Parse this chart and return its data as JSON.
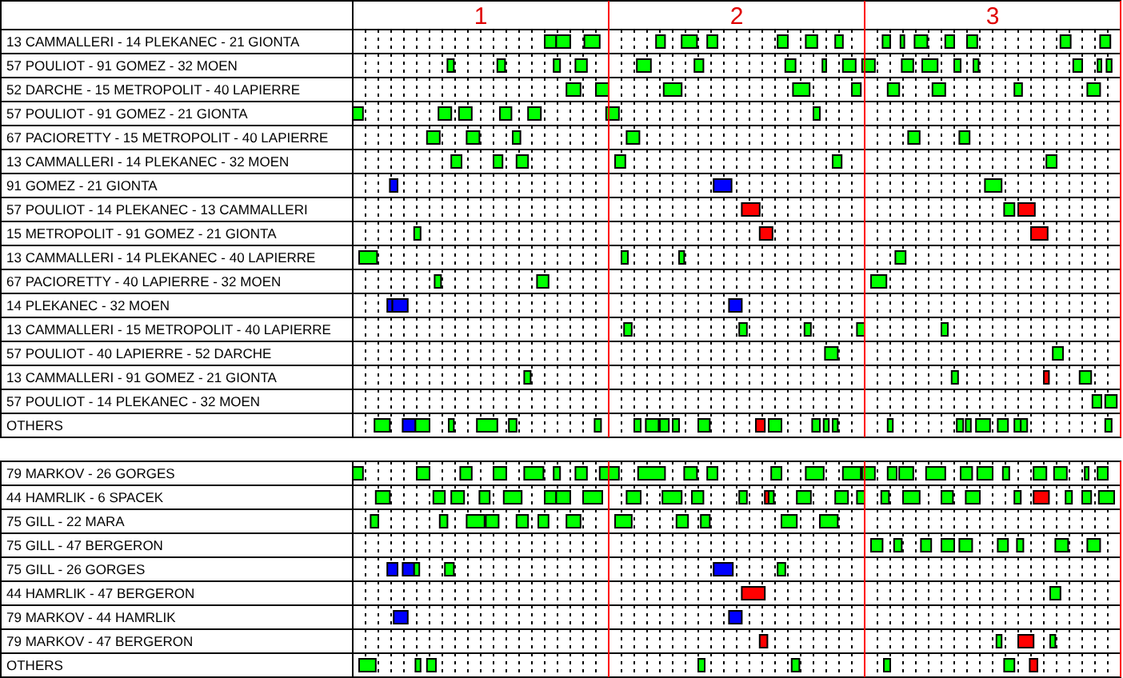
{
  "chart_data": {
    "type": "bar",
    "orientation": "horizontal",
    "grid": "x",
    "xlim": [
      0.5,
      3.5
    ],
    "xticks": [
      {
        "value": 0.55,
        "label": null
      },
      {
        "value": 0.6,
        "label": null
      },
      {
        "value": 0.65,
        "label": null
      },
      {
        "value": 0.7,
        "label": null
      },
      {
        "value": 0.75,
        "label": null
      },
      {
        "value": 0.8,
        "label": null
      },
      {
        "value": 0.85,
        "label": null
      },
      {
        "value": 0.9,
        "label": null
      },
      {
        "value": 0.95,
        "label": null
      },
      1,
      {
        "value": 1.05,
        "label": null
      },
      {
        "value": 1.1,
        "label": null
      },
      {
        "value": 1.15,
        "label": null
      },
      {
        "value": 1.2,
        "label": null
      },
      {
        "value": 1.25,
        "label": null
      },
      {
        "value": 1.3,
        "label": null
      },
      {
        "value": 1.35,
        "label": null
      },
      {
        "value": 1.4,
        "label": null
      },
      {
        "value": 1.45,
        "label": null
      },
      {
        "value": 1.55,
        "label": null
      },
      {
        "value": 1.6,
        "label": null
      },
      {
        "value": 1.65,
        "label": null
      },
      {
        "value": 1.7,
        "label": null
      },
      {
        "value": 1.75,
        "label": null
      },
      {
        "value": 1.8,
        "label": null
      },
      {
        "value": 1.85,
        "label": null
      },
      {
        "value": 1.9,
        "label": null
      },
      {
        "value": 1.95,
        "label": null
      },
      2,
      {
        "value": 2.05,
        "label": null
      },
      {
        "value": 2.1,
        "label": null
      },
      {
        "value": 2.15,
        "label": null
      },
      {
        "value": 2.2,
        "label": null
      },
      {
        "value": 2.25,
        "label": null
      },
      {
        "value": 2.3,
        "label": null
      },
      {
        "value": 2.35,
        "label": null
      },
      {
        "value": 2.4,
        "label": null
      },
      {
        "value": 2.45,
        "label": null
      },
      {
        "value": 2.55,
        "label": null
      },
      {
        "value": 2.6,
        "label": null
      },
      {
        "value": 2.65,
        "label": null
      },
      {
        "value": 2.7,
        "label": null
      },
      {
        "value": 2.75,
        "label": null
      },
      {
        "value": 2.8,
        "label": null
      },
      {
        "value": 2.85,
        "label": null
      },
      {
        "value": 2.9,
        "label": null
      },
      {
        "value": 2.95,
        "label": null
      },
      3,
      {
        "value": 3.05,
        "label": null
      },
      {
        "value": 3.1,
        "label": null
      },
      {
        "value": 3.15,
        "label": null
      },
      {
        "value": 3.2,
        "label": null
      },
      {
        "value": 3.25,
        "label": null
      },
      {
        "value": 3.3,
        "label": null
      },
      {
        "value": 3.35,
        "label": null
      },
      {
        "value": 3.4,
        "label": null
      },
      {
        "value": 3.45,
        "label": null
      }
    ],
    "ref_lines": [
      {
        "axis": "x",
        "value": 1.5,
        "color": "#ff0000"
      },
      {
        "axis": "x",
        "value": 2.5,
        "color": "#ff0000"
      },
      {
        "axis": "x",
        "value": 3.5,
        "color": "#ff0000"
      }
    ],
    "categories": [
      "13 CAMMALLERI - 14 PLEKANEC - 21 GIONTA",
      "57 POULIOT - 91 GOMEZ - 32 MOEN",
      "52 DARCHE - 15 METROPOLIT - 40 LAPIERRE",
      "57 POULIOT - 91 GOMEZ - 21 GIONTA",
      "67 PACIORETTY - 15 METROPOLIT - 40 LAPIERRE",
      "13 CAMMALLERI - 14 PLEKANEC - 32 MOEN",
      "91 GOMEZ - 21 GIONTA",
      "57 POULIOT - 14 PLEKANEC - 13 CAMMALLERI",
      "15 METROPOLIT - 91 GOMEZ - 21 GIONTA",
      "13 CAMMALLERI - 14 PLEKANEC - 40 LAPIERRE",
      "67 PACIORETTY - 40 LAPIERRE - 32 MOEN",
      "14 PLEKANEC - 32 MOEN",
      "13 CAMMALLERI - 15 METROPOLIT - 40 LAPIERRE",
      "57 POULIOT - 40 LAPIERRE - 52 DARCHE",
      "13 CAMMALLERI - 91 GOMEZ - 21 GIONTA",
      "57 POULIOT - 14 PLEKANEC - 32 MOEN",
      "OTHERS",
      null,
      "79 MARKOV - 26 GORGES",
      "44 HAMRLIK - 6 SPACEK",
      "75 GILL - 22 MARA",
      "75 GILL - 47 BERGERON",
      "75 GILL - 26 GORGES",
      "44 HAMRLIK - 47 BERGERON",
      "79 MARKOV - 44 HAMRLIK",
      "79 MARKOV - 47 BERGERON",
      "OTHERS"
    ],
    "series": [
      {
        "base": [
          1.25,
          0.87,
          1.335,
          0.5,
          0.79,
          0.885,
          0.645,
          2.02,
          0.74,
          0.525,
          0.82,
          0.635,
          1.56,
          2.345,
          1.17,
          3.39,
          0.585,
          null,
          0.5,
          0.59,
          0.57,
          2.525,
          0.635,
          2.02,
          0.66,
          2.09,
          0.525
        ],
        "values": [
          0.045,
          0.025,
          0.055,
          0.04,
          0.05,
          0.04,
          0.03,
          0.07,
          0.025,
          0.07,
          0.025,
          0.02,
          0.03,
          0.05,
          0.025,
          0.035,
          0.06,
          null,
          0.04,
          0.055,
          0.03,
          0.045,
          0.04,
          0.09,
          0.055,
          0.03,
          0.065
        ],
        "colors": [
          "#00ff00",
          "#00ff00",
          "#00ff00",
          "#00ff00",
          "#00ff00",
          "#00ff00",
          "#0000ff",
          "#ff0000",
          "#00ff00",
          "#00ff00",
          "#00ff00",
          "#0000ff",
          "#00ff00",
          "#00ff00",
          "#00ff00",
          "#00ff00",
          "#00ff00",
          null,
          "#00ff00",
          "#00ff00",
          "#00ff00",
          "#00ff00",
          "#0000ff",
          "#ff0000",
          "#0000ff",
          "#ff0000",
          "#00ff00"
        ]
      },
      {
        "base": [
          1.295,
          1.065,
          1.45,
          0.835,
          0.945,
          1.05,
          1.91,
          3.045,
          2.09,
          1.55,
          1.22,
          0.655,
          2.01,
          3.235,
          2.84,
          3.44,
          0.695,
          null,
          0.75,
          0.815,
          0.84,
          2.615,
          0.695,
          3.225,
          1.97,
          3.015,
          0.745
        ],
        "values": [
          0.055,
          0.03,
          0.05,
          0.05,
          0.05,
          0.035,
          0.07,
          0.04,
          0.05,
          0.025,
          0.045,
          0.06,
          0.03,
          0.04,
          0.025,
          0.045,
          0.05,
          null,
          0.05,
          0.045,
          0.03,
          0.03,
          0.045,
          0.04,
          0.05,
          0.02,
          0.02
        ],
        "colors": [
          "#00ff00",
          "#00ff00",
          "#00ff00",
          "#00ff00",
          "#00ff00",
          "#00ff00",
          "#0000ff",
          "#00ff00",
          "#ff0000",
          "#00ff00",
          "#00ff00",
          "#0000ff",
          "#00ff00",
          "#00ff00",
          "#00ff00",
          "#00ff00",
          "#0000ff",
          null,
          "#00ff00",
          "#00ff00",
          "#00ff00",
          "#00ff00",
          "#0000ff",
          "#00ff00",
          "#0000ff",
          "#00ff00",
          "#00ff00"
        ]
      },
      {
        "base": [
          1.405,
          1.285,
          1.715,
          0.915,
          1.125,
          1.14,
          2.97,
          3.1,
          3.15,
          1.775,
          2.525,
          1.97,
          2.265,
          null,
          3.2,
          null,
          0.745,
          null,
          0.92,
          0.885,
          0.945,
          2.72,
          0.74,
          null,
          null,
          3.1,
          0.79
        ],
        "values": [
          0.06,
          0.025,
          0.07,
          0.05,
          0.03,
          0.045,
          0.065,
          0.065,
          0.065,
          0.02,
          0.06,
          0.05,
          0.025,
          null,
          0.02,
          null,
          0.055,
          null,
          0.045,
          0.05,
          0.07,
          0.04,
          0.02,
          null,
          null,
          0.06,
          0.035
        ],
        "colors": [
          "#00ff00",
          "#00ff00",
          "#00ff00",
          "#00ff00",
          "#00ff00",
          "#00ff00",
          "#00ff00",
          "#ff0000",
          "#ff0000",
          "#00ff00",
          "#00ff00",
          "#0000ff",
          "#00ff00",
          null,
          "#ff0000",
          null,
          "#00ff00",
          null,
          "#00ff00",
          "#00ff00",
          "#00ff00",
          "#00ff00",
          "#00ff00",
          null,
          null,
          "#ff0000",
          "#00ff00"
        ]
      },
      {
        "color": "#00ff00",
        "base": [
          1.685,
          1.37,
          2.22,
          1.075,
          1.57,
          1.525,
          null,
          null,
          null,
          2.62,
          null,
          null,
          2.47,
          null,
          3.34,
          null,
          0.875,
          null,
          1.05,
          0.995,
          1.02,
          2.8,
          0.86,
          null,
          null,
          3.225,
          1.85
        ],
        "values": [
          0.035,
          0.045,
          0.065,
          0.045,
          0.05,
          0.04,
          null,
          null,
          null,
          0.04,
          null,
          null,
          0.03,
          null,
          0.045,
          null,
          0.02,
          null,
          0.05,
          0.04,
          0.05,
          0.05,
          0.035,
          null,
          null,
          0.02,
          0.025
        ]
      },
      {
        "base": [
          1.785,
          1.61,
          2.45,
          1.185,
          2.67,
          2.375,
          null,
          null,
          null,
          null,
          null,
          null,
          2.8,
          null,
          null,
          null,
          0.985,
          null,
          1.17,
          1.09,
          1.14,
          2.87,
          1.91,
          null,
          null,
          null,
          2.215
        ],
        "values": [
          0.06,
          0.055,
          0.035,
          0.05,
          0.045,
          0.035,
          null,
          null,
          null,
          null,
          null,
          null,
          0.025,
          null,
          null,
          null,
          0.08,
          null,
          0.075,
          0.07,
          0.045,
          0.05,
          0.075,
          null,
          null,
          null,
          0.03
        ],
        "colors": [
          "#00ff00",
          "#00ff00",
          "#00ff00",
          "#00ff00",
          "#00ff00",
          "#00ff00",
          null,
          null,
          null,
          null,
          null,
          null,
          "#00ff00",
          null,
          null,
          null,
          "#00ff00",
          null,
          "#00ff00",
          "#00ff00",
          "#00ff00",
          "#00ff00",
          "#0000ff",
          null,
          null,
          null,
          "#00ff00"
        ]
      },
      {
        "color": "#00ff00",
        "base": [
          1.885,
          1.835,
          2.59,
          1.49,
          2.87,
          3.21,
          null,
          null,
          null,
          null,
          null,
          null,
          null,
          null,
          null,
          null,
          1.11,
          null,
          1.285,
          1.25,
          1.225,
          3.02,
          2.16,
          null,
          null,
          null,
          2.575
        ],
        "values": [
          0.04,
          0.035,
          0.045,
          0.05,
          0.04,
          0.04,
          null,
          null,
          null,
          null,
          null,
          null,
          null,
          null,
          null,
          null,
          0.03,
          null,
          0.025,
          0.045,
          0.04,
          0.04,
          0.03,
          null,
          null,
          null,
          0.025
        ]
      },
      {
        "color": "#00ff00",
        "base": [
          2.16,
          2.19,
          2.765,
          2.3,
          null,
          null,
          null,
          null,
          null,
          null,
          null,
          null,
          null,
          null,
          null,
          null,
          1.445,
          null,
          1.37,
          1.295,
          1.335,
          3.095,
          null,
          null,
          null,
          null,
          3.045
        ],
        "values": [
          0.04,
          0.04,
          0.05,
          0.025,
          null,
          null,
          null,
          null,
          null,
          null,
          null,
          null,
          null,
          null,
          null,
          null,
          0.025,
          null,
          0.045,
          0.055,
          0.055,
          0.025,
          null,
          null,
          null,
          null,
          0.04
        ]
      },
      {
        "base": [
          2.27,
          2.335,
          3.085,
          null,
          null,
          null,
          null,
          null,
          null,
          null,
          null,
          null,
          null,
          null,
          null,
          null,
          1.6,
          null,
          1.465,
          1.4,
          1.525,
          3.245,
          null,
          null,
          null,
          null,
          3.145
        ],
        "values": [
          0.045,
          0.015,
          0.03,
          null,
          null,
          null,
          null,
          null,
          null,
          null,
          null,
          null,
          null,
          null,
          null,
          null,
          0.025,
          null,
          0.075,
          0.075,
          0.065,
          0.05,
          null,
          null,
          null,
          null,
          0.03
        ],
        "colors": [
          "#00ff00",
          "#00ff00",
          "#00ff00",
          null,
          null,
          null,
          null,
          null,
          null,
          null,
          null,
          null,
          null,
          null,
          null,
          null,
          "#00ff00",
          null,
          "#00ff00",
          "#00ff00",
          "#00ff00",
          "#00ff00",
          null,
          null,
          null,
          null,
          "#ff0000"
        ]
      },
      {
        "color": "#00ff00",
        "base": [
          2.385,
          2.415,
          3.37,
          null,
          null,
          null,
          null,
          null,
          null,
          null,
          null,
          null,
          null,
          null,
          null,
          null,
          1.645,
          null,
          1.615,
          1.57,
          1.765,
          3.37,
          null,
          null,
          null,
          null,
          null
        ],
        "values": [
          0.03,
          0.05,
          0.05,
          null,
          null,
          null,
          null,
          null,
          null,
          null,
          null,
          null,
          null,
          null,
          null,
          null,
          0.05,
          null,
          0.105,
          0.055,
          0.045,
          0.05,
          null,
          null,
          null,
          null,
          null
        ]
      },
      {
        "color": "#00ff00",
        "base": [
          2.57,
          2.49,
          null,
          null,
          null,
          null,
          null,
          null,
          null,
          null,
          null,
          null,
          null,
          null,
          null,
          null,
          1.7,
          null,
          1.795,
          1.71,
          1.86,
          null,
          null,
          null,
          null,
          null,
          null
        ],
        "values": [
          0.03,
          0.05,
          null,
          null,
          null,
          null,
          null,
          null,
          null,
          null,
          null,
          null,
          null,
          null,
          null,
          null,
          0.035,
          null,
          0.05,
          0.075,
          0.035,
          null,
          null,
          null,
          null,
          null,
          null
        ]
      },
      {
        "color": "#00ff00",
        "base": [
          2.64,
          2.645,
          null,
          null,
          null,
          null,
          null,
          null,
          null,
          null,
          null,
          null,
          null,
          null,
          null,
          null,
          1.75,
          null,
          1.885,
          1.825,
          2.175,
          null,
          null,
          null,
          null,
          null,
          null
        ],
        "values": [
          0.015,
          0.045,
          null,
          null,
          null,
          null,
          null,
          null,
          null,
          null,
          null,
          null,
          null,
          null,
          null,
          null,
          0.025,
          null,
          0.04,
          0.045,
          0.06,
          null,
          null,
          null,
          null,
          null,
          null
        ]
      },
      {
        "color": "#00ff00",
        "base": [
          2.695,
          2.725,
          null,
          null,
          null,
          null,
          null,
          null,
          null,
          null,
          null,
          null,
          null,
          null,
          null,
          null,
          1.85,
          null,
          2.135,
          2.01,
          2.325,
          null,
          null,
          null,
          null,
          null,
          null
        ],
        "values": [
          0.05,
          0.06,
          null,
          null,
          null,
          null,
          null,
          null,
          null,
          null,
          null,
          null,
          null,
          null,
          null,
          null,
          0.045,
          null,
          0.04,
          0.03,
          0.07,
          null,
          null,
          null,
          null,
          null,
          null
        ]
      },
      {
        "base": [
          2.815,
          2.85,
          null,
          null,
          null,
          null,
          null,
          null,
          null,
          null,
          null,
          null,
          null,
          null,
          null,
          null,
          2.075,
          null,
          2.27,
          2.11,
          null,
          null,
          null,
          null,
          null,
          null,
          null
        ],
        "values": [
          0.035,
          0.025,
          null,
          null,
          null,
          null,
          null,
          null,
          null,
          null,
          null,
          null,
          null,
          null,
          null,
          null,
          0.035,
          null,
          0.07,
          0.015,
          null,
          null,
          null,
          null,
          null,
          null,
          null
        ],
        "colors": [
          "#00ff00",
          "#00ff00",
          null,
          null,
          null,
          null,
          null,
          null,
          null,
          null,
          null,
          null,
          null,
          null,
          null,
          null,
          "#ff0000",
          null,
          "#00ff00",
          "#ff0000",
          null,
          null,
          null,
          null,
          null,
          null,
          null
        ]
      },
      {
        "color": "#00ff00",
        "base": [
          2.9,
          2.925,
          null,
          null,
          null,
          null,
          null,
          null,
          null,
          null,
          null,
          null,
          null,
          null,
          null,
          null,
          2.125,
          null,
          2.415,
          2.125,
          null,
          null,
          null,
          null,
          null,
          null,
          null
        ],
        "values": [
          0.04,
          0.02,
          null,
          null,
          null,
          null,
          null,
          null,
          null,
          null,
          null,
          null,
          null,
          null,
          null,
          null,
          0.05,
          null,
          0.07,
          0.02,
          null,
          null,
          null,
          null,
          null,
          null,
          null
        ]
      },
      {
        "color": "#00ff00",
        "base": [
          3.265,
          3.315,
          null,
          null,
          null,
          null,
          null,
          null,
          null,
          null,
          null,
          null,
          null,
          null,
          null,
          null,
          2.295,
          null,
          2.49,
          2.235,
          null,
          null,
          null,
          null,
          null,
          null,
          null
        ],
        "values": [
          0.04,
          0.035,
          null,
          null,
          null,
          null,
          null,
          null,
          null,
          null,
          null,
          null,
          null,
          null,
          null,
          null,
          0.03,
          null,
          0.05,
          0.055,
          null,
          null,
          null,
          null,
          null,
          null,
          null
        ]
      },
      {
        "color": "#00ff00",
        "base": [
          3.42,
          3.41,
          null,
          null,
          null,
          null,
          null,
          null,
          null,
          null,
          null,
          null,
          null,
          null,
          null,
          null,
          2.34,
          null,
          2.59,
          2.385,
          null,
          null,
          null,
          null,
          null,
          null,
          null
        ],
        "values": [
          0.04,
          0.015,
          null,
          null,
          null,
          null,
          null,
          null,
          null,
          null,
          null,
          null,
          null,
          null,
          null,
          null,
          0.02,
          null,
          0.035,
          0.05,
          null,
          null,
          null,
          null,
          null,
          null,
          null
        ]
      },
      {
        "color": "#00ff00",
        "base": [
          null,
          3.445,
          null,
          null,
          null,
          null,
          null,
          null,
          null,
          null,
          null,
          null,
          null,
          null,
          null,
          null,
          2.375,
          null,
          2.635,
          2.47,
          null,
          null,
          null,
          null,
          null,
          null,
          null
        ],
        "values": [
          null,
          0.02,
          null,
          null,
          null,
          null,
          null,
          null,
          null,
          null,
          null,
          null,
          null,
          null,
          null,
          null,
          0.02,
          null,
          0.055,
          0.03,
          null,
          null,
          null,
          null,
          null,
          null,
          null
        ]
      },
      {
        "color": "#00ff00",
        "base": [
          null,
          null,
          null,
          null,
          null,
          null,
          null,
          null,
          null,
          null,
          null,
          null,
          null,
          null,
          null,
          null,
          2.59,
          null,
          2.74,
          2.565,
          null,
          null,
          null,
          null,
          null,
          null,
          null
        ],
        "values": [
          null,
          null,
          null,
          null,
          null,
          null,
          null,
          null,
          null,
          null,
          null,
          null,
          null,
          null,
          null,
          null,
          0.02,
          null,
          0.075,
          0.03,
          null,
          null,
          null,
          null,
          null,
          null,
          null
        ]
      },
      {
        "color": "#00ff00",
        "base": [
          null,
          null,
          null,
          null,
          null,
          null,
          null,
          null,
          null,
          null,
          null,
          null,
          null,
          null,
          null,
          null,
          2.86,
          null,
          2.875,
          2.65,
          null,
          null,
          null,
          null,
          null,
          null,
          null
        ],
        "values": [
          null,
          null,
          null,
          null,
          null,
          null,
          null,
          null,
          null,
          null,
          null,
          null,
          null,
          null,
          null,
          null,
          0.025,
          null,
          0.045,
          0.065,
          null,
          null,
          null,
          null,
          null,
          null,
          null
        ]
      },
      {
        "color": "#00ff00",
        "base": [
          null,
          null,
          null,
          null,
          null,
          null,
          null,
          null,
          null,
          null,
          null,
          null,
          null,
          null,
          null,
          null,
          2.895,
          null,
          2.94,
          2.8,
          null,
          null,
          null,
          null,
          null,
          null,
          null
        ],
        "values": [
          null,
          null,
          null,
          null,
          null,
          null,
          null,
          null,
          null,
          null,
          null,
          null,
          null,
          null,
          null,
          null,
          0.02,
          null,
          0.06,
          0.045,
          null,
          null,
          null,
          null,
          null,
          null,
          null
        ]
      },
      {
        "color": "#00ff00",
        "base": [
          null,
          null,
          null,
          null,
          null,
          null,
          null,
          null,
          null,
          null,
          null,
          null,
          null,
          null,
          null,
          null,
          2.935,
          null,
          3.04,
          2.895,
          null,
          null,
          null,
          null,
          null,
          null,
          null
        ],
        "values": [
          null,
          null,
          null,
          null,
          null,
          null,
          null,
          null,
          null,
          null,
          null,
          null,
          null,
          null,
          null,
          null,
          0.055,
          null,
          0.025,
          0.055,
          null,
          null,
          null,
          null,
          null,
          null,
          null
        ]
      },
      {
        "color": "#00ff00",
        "base": [
          null,
          null,
          null,
          null,
          null,
          null,
          null,
          null,
          null,
          null,
          null,
          null,
          null,
          null,
          null,
          null,
          3.02,
          null,
          3.16,
          3.085,
          null,
          null,
          null,
          null,
          null,
          null,
          null
        ],
        "values": [
          null,
          null,
          null,
          null,
          null,
          null,
          null,
          null,
          null,
          null,
          null,
          null,
          null,
          null,
          null,
          null,
          0.04,
          null,
          0.05,
          0.025,
          null,
          null,
          null,
          null,
          null,
          null,
          null
        ]
      },
      {
        "base": [
          null,
          null,
          null,
          null,
          null,
          null,
          null,
          null,
          null,
          null,
          null,
          null,
          null,
          null,
          null,
          null,
          3.085,
          null,
          3.24,
          3.16,
          null,
          null,
          null,
          null,
          null,
          null,
          null
        ],
        "values": [
          null,
          null,
          null,
          null,
          null,
          null,
          null,
          null,
          null,
          null,
          null,
          null,
          null,
          null,
          null,
          null,
          0.025,
          null,
          0.05,
          0.06,
          null,
          null,
          null,
          null,
          null,
          null,
          null
        ],
        "colors": [
          null,
          null,
          null,
          null,
          null,
          null,
          null,
          null,
          null,
          null,
          null,
          null,
          null,
          null,
          null,
          null,
          "#00ff00",
          null,
          "#00ff00",
          "#ff0000",
          null,
          null,
          null,
          null,
          null,
          null,
          null
        ]
      },
      {
        "color": "#00ff00",
        "base": [
          null,
          null,
          null,
          null,
          null,
          null,
          null,
          null,
          null,
          null,
          null,
          null,
          null,
          null,
          null,
          null,
          3.11,
          null,
          3.36,
          3.285,
          null,
          null,
          null,
          null,
          null,
          null,
          null
        ],
        "values": [
          null,
          null,
          null,
          null,
          null,
          null,
          null,
          null,
          null,
          null,
          null,
          null,
          null,
          null,
          null,
          null,
          0.025,
          null,
          0.015,
          0.025,
          null,
          null,
          null,
          null,
          null,
          null,
          null
        ]
      },
      {
        "color": "#00ff00",
        "base": [
          null,
          null,
          null,
          null,
          null,
          null,
          null,
          null,
          null,
          null,
          null,
          null,
          null,
          null,
          null,
          null,
          3.44,
          null,
          3.41,
          3.35,
          null,
          null,
          null,
          null,
          null,
          null,
          null
        ],
        "values": [
          null,
          null,
          null,
          null,
          null,
          null,
          null,
          null,
          null,
          null,
          null,
          null,
          null,
          null,
          null,
          null,
          0.025,
          null,
          0.04,
          0.035,
          null,
          null,
          null,
          null,
          null,
          null,
          null
        ]
      },
      {
        "color": "#00ff00",
        "base": [
          null,
          null,
          null,
          null,
          null,
          null,
          null,
          null,
          null,
          null,
          null,
          null,
          null,
          null,
          null,
          null,
          null,
          null,
          null,
          3.415,
          null,
          null,
          null,
          null,
          null,
          null,
          null
        ],
        "values": [
          null,
          null,
          null,
          null,
          null,
          null,
          null,
          null,
          null,
          null,
          null,
          null,
          null,
          null,
          null,
          null,
          null,
          null,
          null,
          0.06,
          null,
          null,
          null,
          null,
          null,
          null,
          null
        ]
      }
    ]
  }
}
